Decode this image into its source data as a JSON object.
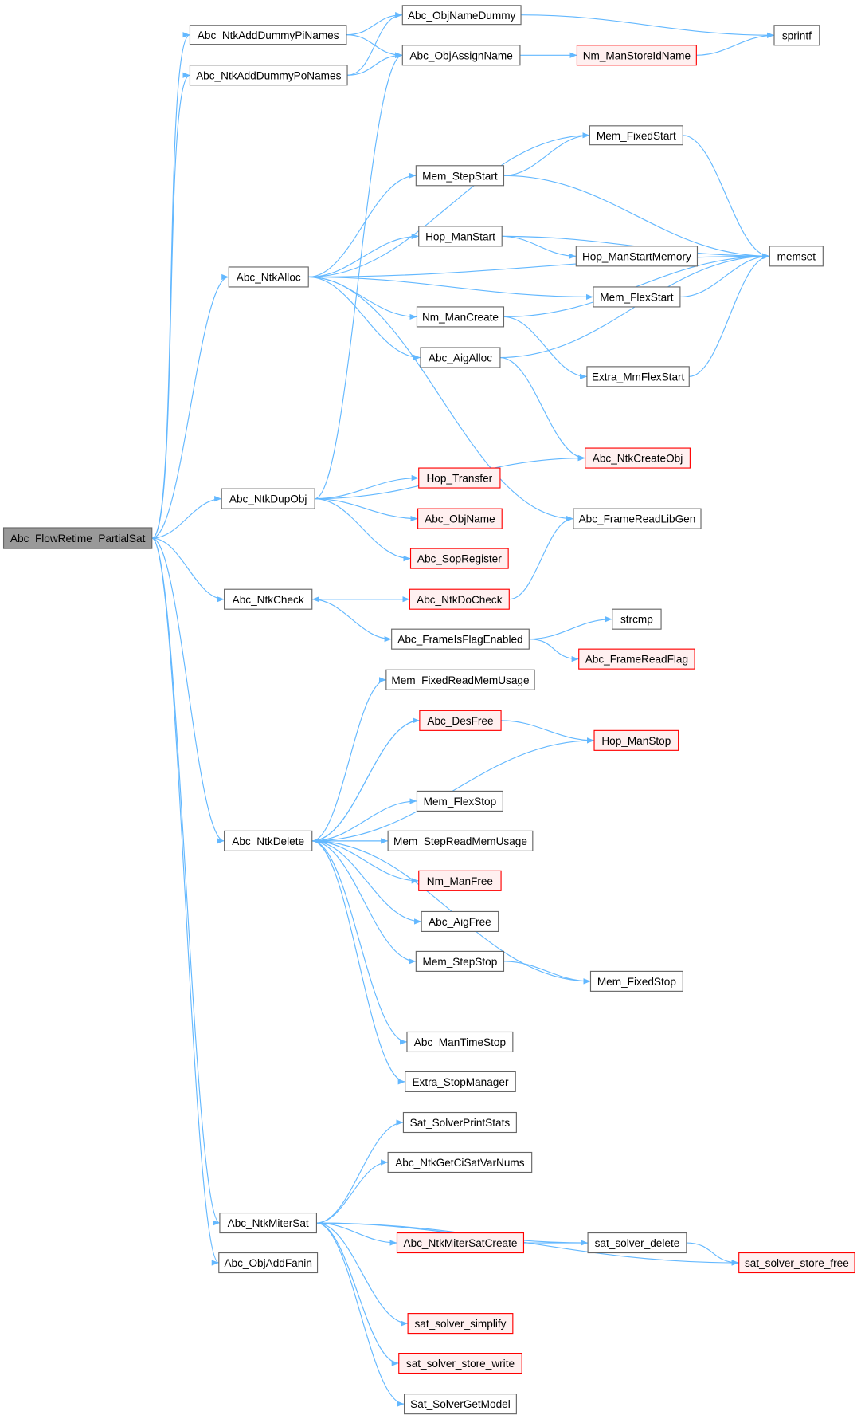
{
  "nodes": [
    "Abc_FlowRetime_PartialSat",
    "Abc_NtkAddDummyPiNames",
    "Abc_NtkAddDummyPoNames",
    "Abc_ObjNameDummy",
    "Abc_ObjAssignName",
    "Nm_ManStoreIdName",
    "sprintf",
    "Mem_FixedStart",
    "Mem_StepStart",
    "Hop_ManStart",
    "Hop_ManStartMemory",
    "memset",
    "Abc_NtkAlloc",
    "Mem_FlexStart",
    "Nm_ManCreate",
    "Abc_AigAlloc",
    "Extra_MmFlexStart",
    "Abc_NtkCreateObj",
    "Hop_Transfer",
    "Abc_NtkDupObj",
    "Abc_ObjName",
    "Abc_FrameReadLibGen",
    "Abc_SopRegister",
    "Abc_NtkCheck",
    "Abc_NtkDoCheck",
    "strcmp",
    "Abc_FrameIsFlagEnabled",
    "Abc_FrameReadFlag",
    "Mem_FixedReadMemUsage",
    "Abc_DesFree",
    "Hop_ManStop",
    "Mem_FlexStop",
    "Abc_NtkDelete",
    "Mem_StepReadMemUsage",
    "Nm_ManFree",
    "Abc_AigFree",
    "Mem_StepStop",
    "Mem_FixedStop",
    "Abc_ManTimeStop",
    "Extra_StopManager",
    "Sat_SolverPrintStats",
    "Abc_NtkGetCiSatVarNums",
    "Abc_NtkMiterSat",
    "Abc_NtkMiterSatCreate",
    "sat_solver_delete",
    "Abc_ObjAddFanin",
    "sat_solver_store_free",
    "sat_solver_simplify",
    "sat_solver_store_write",
    "Sat_SolverGetModel"
  ]
}
